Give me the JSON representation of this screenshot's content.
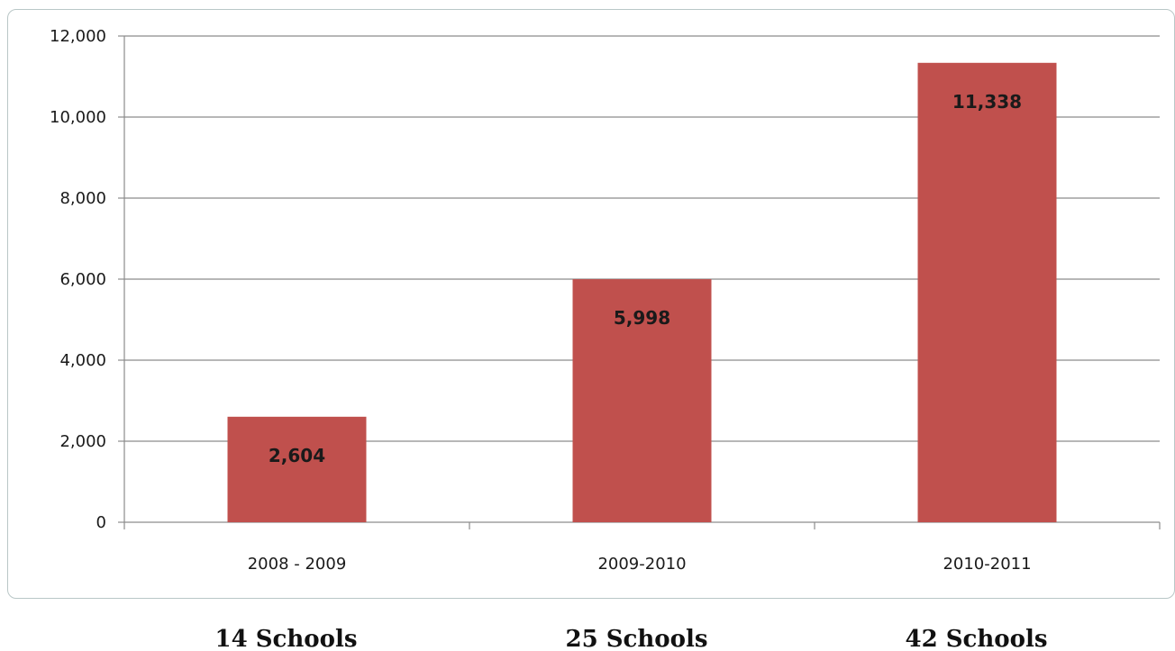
{
  "chart_data": {
    "type": "bar",
    "categories": [
      "2008 - 2009",
      "2009-2010",
      "2010-2011"
    ],
    "values": [
      2604,
      5998,
      11338
    ],
    "data_labels": [
      "2,604",
      "5,998",
      "11,338"
    ],
    "y_ticks": [
      0,
      2000,
      4000,
      6000,
      8000,
      10000,
      12000
    ],
    "y_tick_labels": [
      "0",
      "2,000",
      "4,000",
      "6,000",
      "8,000",
      "10,000",
      "12,000"
    ],
    "ylim": [
      0,
      12000
    ],
    "grid": true,
    "legend": "none",
    "bar_color": "#c0504d",
    "title": "",
    "xlabel": "",
    "ylabel": ""
  },
  "captions": [
    "14 Schools",
    "25 Schools",
    "42 Schools"
  ],
  "colors": {
    "gridline": "#8c8c8c",
    "axis": "#8c8c8c",
    "frame": "#b9c7c7"
  }
}
